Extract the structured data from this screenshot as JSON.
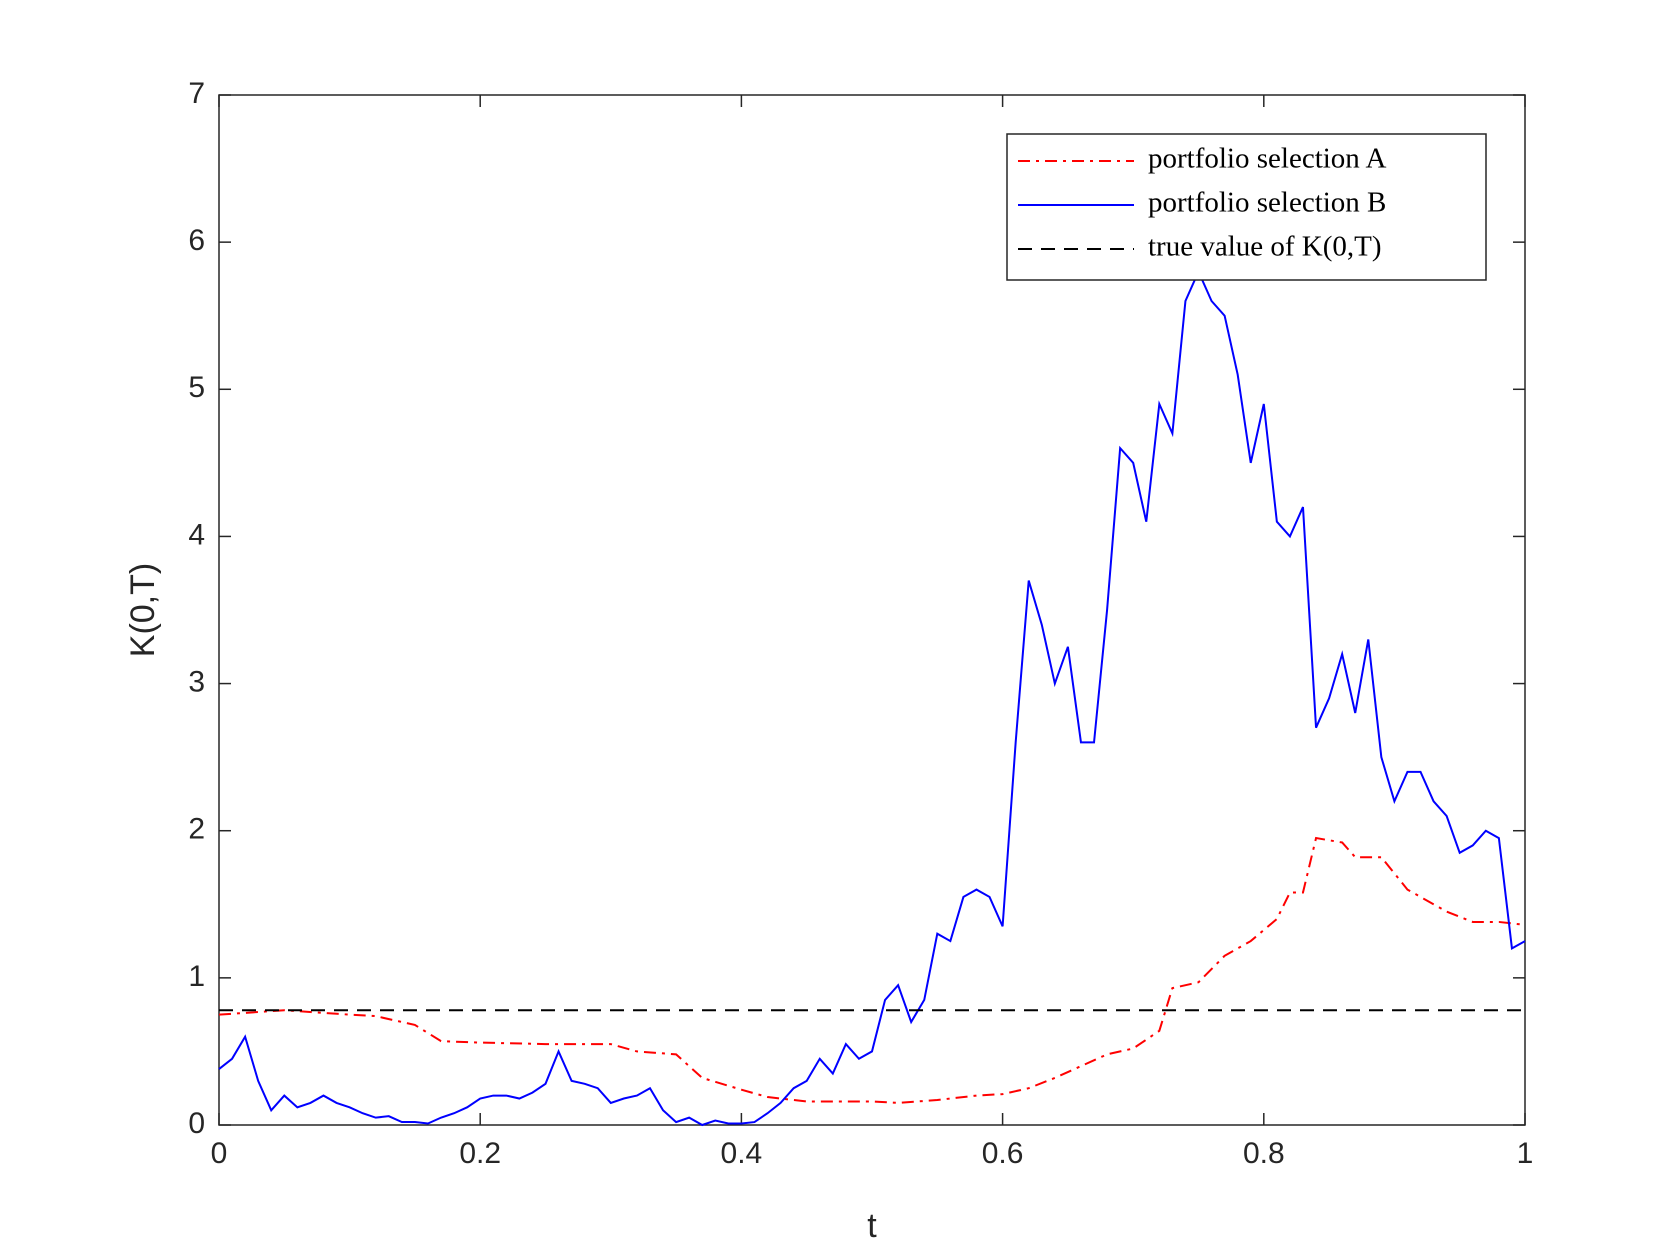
{
  "chart_data": {
    "type": "line",
    "x_label": "t",
    "y_label": "K(0,T)",
    "xlim": [
      0,
      1
    ],
    "ylim": [
      0,
      7
    ],
    "xticks": [
      0,
      0.2,
      0.4,
      0.6,
      0.8,
      1
    ],
    "yticks": [
      0,
      1,
      2,
      3,
      4,
      5,
      6,
      7
    ],
    "legend_position": "upper right",
    "series": [
      {
        "name": "portfolio selection A",
        "color": "#ff0000",
        "style": "dashdot",
        "x": [
          0,
          0.05,
          0.1,
          0.12,
          0.15,
          0.17,
          0.2,
          0.25,
          0.3,
          0.32,
          0.35,
          0.37,
          0.4,
          0.42,
          0.45,
          0.5,
          0.52,
          0.55,
          0.58,
          0.6,
          0.62,
          0.64,
          0.66,
          0.68,
          0.7,
          0.72,
          0.73,
          0.75,
          0.77,
          0.79,
          0.81,
          0.82,
          0.83,
          0.84,
          0.86,
          0.87,
          0.89,
          0.91,
          0.92,
          0.94,
          0.96,
          0.98,
          1
        ],
        "values": [
          0.75,
          0.78,
          0.75,
          0.74,
          0.68,
          0.57,
          0.56,
          0.55,
          0.55,
          0.5,
          0.48,
          0.32,
          0.24,
          0.19,
          0.16,
          0.16,
          0.15,
          0.17,
          0.2,
          0.21,
          0.25,
          0.32,
          0.4,
          0.48,
          0.52,
          0.64,
          0.93,
          0.97,
          1.15,
          1.25,
          1.4,
          1.58,
          1.58,
          1.95,
          1.92,
          1.82,
          1.82,
          1.6,
          1.55,
          1.45,
          1.38,
          1.38,
          1.36
        ]
      },
      {
        "name": "portfolio selection B",
        "color": "#0000ff",
        "style": "solid",
        "x": [
          0,
          0.01,
          0.02,
          0.03,
          0.04,
          0.05,
          0.06,
          0.07,
          0.08,
          0.09,
          0.1,
          0.11,
          0.12,
          0.13,
          0.14,
          0.15,
          0.16,
          0.17,
          0.18,
          0.19,
          0.2,
          0.21,
          0.22,
          0.23,
          0.24,
          0.25,
          0.26,
          0.27,
          0.28,
          0.29,
          0.3,
          0.31,
          0.32,
          0.33,
          0.34,
          0.35,
          0.36,
          0.37,
          0.38,
          0.39,
          0.4,
          0.41,
          0.42,
          0.43,
          0.44,
          0.45,
          0.46,
          0.47,
          0.48,
          0.49,
          0.5,
          0.51,
          0.52,
          0.53,
          0.54,
          0.55,
          0.56,
          0.57,
          0.58,
          0.59,
          0.6,
          0.61,
          0.62,
          0.63,
          0.64,
          0.65,
          0.66,
          0.67,
          0.68,
          0.69,
          0.7,
          0.71,
          0.72,
          0.73,
          0.74,
          0.75,
          0.76,
          0.77,
          0.78,
          0.79,
          0.8,
          0.81,
          0.82,
          0.83,
          0.84,
          0.85,
          0.86,
          0.87,
          0.88,
          0.89,
          0.9,
          0.91,
          0.92,
          0.93,
          0.94,
          0.95,
          0.96,
          0.97,
          0.98,
          0.99,
          1
        ],
        "values": [
          0.38,
          0.45,
          0.6,
          0.3,
          0.1,
          0.2,
          0.12,
          0.15,
          0.2,
          0.15,
          0.12,
          0.08,
          0.05,
          0.06,
          0.02,
          0.02,
          0.01,
          0.05,
          0.08,
          0.12,
          0.18,
          0.2,
          0.2,
          0.18,
          0.22,
          0.28,
          0.5,
          0.3,
          0.28,
          0.25,
          0.15,
          0.18,
          0.2,
          0.25,
          0.1,
          0.02,
          0.05,
          0,
          0.03,
          0.01,
          0.01,
          0.02,
          0.08,
          0.15,
          0.25,
          0.3,
          0.45,
          0.35,
          0.55,
          0.45,
          0.5,
          0.85,
          0.95,
          0.7,
          0.85,
          1.3,
          1.25,
          1.55,
          1.6,
          1.55,
          1.35,
          2.6,
          3.7,
          3.4,
          3,
          3.25,
          2.6,
          2.6,
          3.5,
          4.6,
          4.5,
          4.1,
          4.9,
          4.7,
          5.6,
          5.8,
          5.6,
          5.5,
          5.1,
          4.5,
          4.9,
          4.1,
          4,
          4.2,
          2.7,
          2.9,
          3.2,
          2.8,
          3.3,
          2.5,
          2.2,
          2.4,
          2.4,
          2.2,
          2.1,
          1.85,
          1.9,
          2,
          1.95,
          1.2,
          1.25
        ]
      },
      {
        "name": "true value of K(0,T)",
        "color": "#000000",
        "style": "dashed",
        "x": [
          0,
          1
        ],
        "values": [
          0.78,
          0.78
        ]
      }
    ]
  }
}
